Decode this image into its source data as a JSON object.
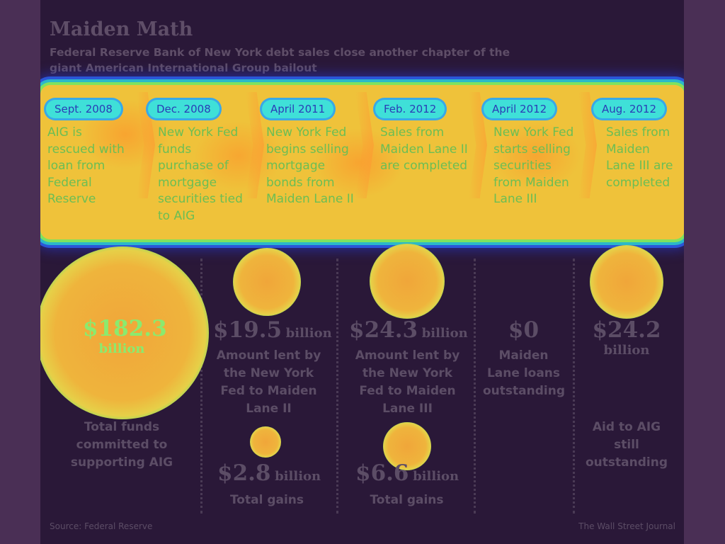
{
  "header": {
    "title": "Maiden Math",
    "subtitle": "Federal Reserve Bank of New York debt sales close another chapter of the giant American International Group bailout"
  },
  "timeline": [
    {
      "date": "Sept. 2008",
      "text": "AIG is rescued with loan from Federal Reserve"
    },
    {
      "date": "Dec. 2008",
      "text": "New York Fed funds purchase of mortgage securities tied to AIG"
    },
    {
      "date": "April 2011",
      "text": "New York Fed begins selling mortgage bonds from Maiden Lane II"
    },
    {
      "date": "Feb. 2012",
      "text": "Sales from Maiden Lane II are completed"
    },
    {
      "date": "April 2012",
      "text": "New York Fed starts selling securities from Maiden Lane III"
    },
    {
      "date": "Aug. 2012",
      "text": "Sales from Maiden Lane III are completed"
    }
  ],
  "figures": {
    "total": {
      "value": "$182.3",
      "unit": "billion",
      "caption": "Total funds committed to supporting AIG"
    },
    "ml2_lent": {
      "value": "$19.5",
      "unit": "billion",
      "caption": "Amount lent by the New York Fed to Maiden Lane II"
    },
    "ml2_gains": {
      "value": "$2.8",
      "unit": "billion",
      "caption": "Total gains"
    },
    "ml3_lent": {
      "value": "$24.3",
      "unit": "billion",
      "caption": "Amount lent by the New York Fed to Maiden Lane III"
    },
    "ml3_gains": {
      "value": "$6.6",
      "unit": "billion",
      "caption": "Total gains"
    },
    "outstanding_loans": {
      "value": "$0",
      "caption": "Maiden Lane loans outstanding"
    },
    "aid_outstanding": {
      "value": "$24.2",
      "unit": "billion",
      "caption": "Aid to AIG still outstanding"
    }
  },
  "footer": {
    "source": "Source: Federal Reserve",
    "publisher": "The Wall Street Journal"
  }
}
